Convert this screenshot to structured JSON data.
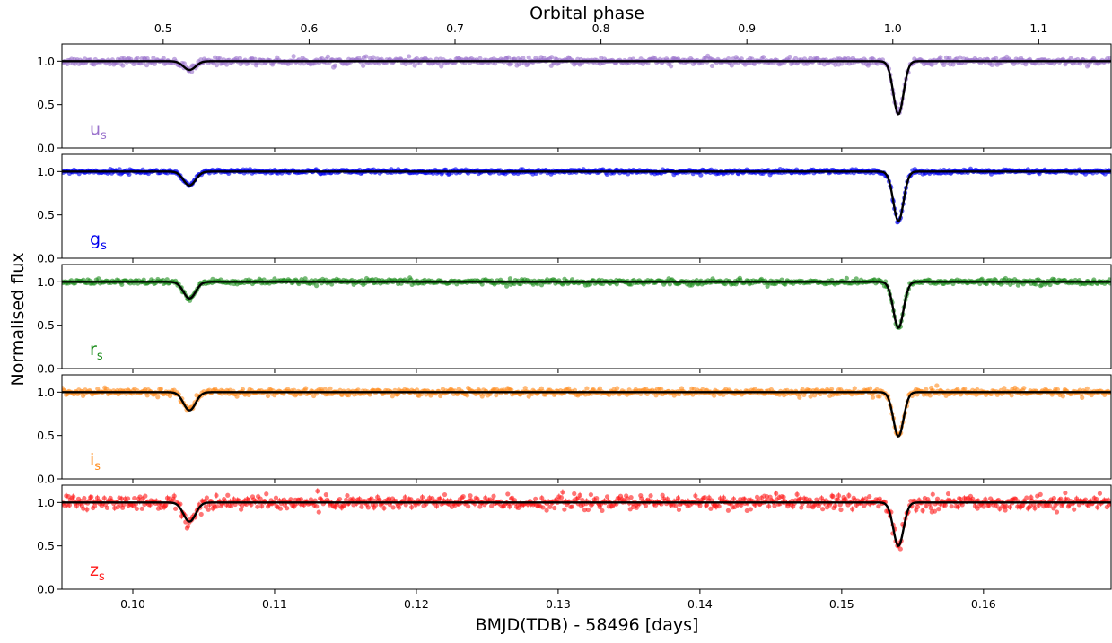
{
  "chart_data": {
    "type": "scatter",
    "x_top_label": "Orbital phase",
    "xlabel": "BMJD(TDB) - 58496 [days]",
    "ylabel": "Normalised flux",
    "xlim": [
      0.095,
      0.169
    ],
    "phase_lim": [
      0.4306,
      1.1496
    ],
    "ylim": [
      0.0,
      1.2
    ],
    "x_ticks": [
      0.1,
      0.11,
      0.12,
      0.13,
      0.14,
      0.15,
      0.16
    ],
    "x_tick_labels": [
      "0.10",
      "0.11",
      "0.12",
      "0.13",
      "0.14",
      "0.15",
      "0.16"
    ],
    "phase_ticks": [
      0.5,
      0.6,
      0.7,
      0.8,
      0.9,
      1.0,
      1.1
    ],
    "phase_tick_labels": [
      "0.5",
      "0.6",
      "0.7",
      "0.8",
      "0.9",
      "1.0",
      "1.1"
    ],
    "y_ticks": [
      0.0,
      0.5,
      1.0
    ],
    "y_tick_labels": [
      "0.0",
      "0.5",
      "1.0"
    ],
    "eclipses": {
      "secondary_time": 0.104,
      "primary_time": 0.154
    },
    "panels": [
      {
        "band": "u",
        "sub": "s",
        "color": "#9a72cc",
        "primary_min": 0.39,
        "secondary_min": 0.9,
        "scatter": 0.02
      },
      {
        "band": "g",
        "sub": "s",
        "color": "#0000ee",
        "primary_min": 0.43,
        "secondary_min": 0.84,
        "scatter": 0.012
      },
      {
        "band": "r",
        "sub": "s",
        "color": "#1a8c1a",
        "primary_min": 0.47,
        "secondary_min": 0.81,
        "scatter": 0.015
      },
      {
        "band": "i",
        "sub": "s",
        "color": "#ff8c1e",
        "primary_min": 0.49,
        "secondary_min": 0.79,
        "scatter": 0.02
      },
      {
        "band": "z",
        "sub": "s",
        "color": "#ff1a1a",
        "primary_min": 0.5,
        "secondary_min": 0.78,
        "scatter": 0.04
      }
    ]
  }
}
